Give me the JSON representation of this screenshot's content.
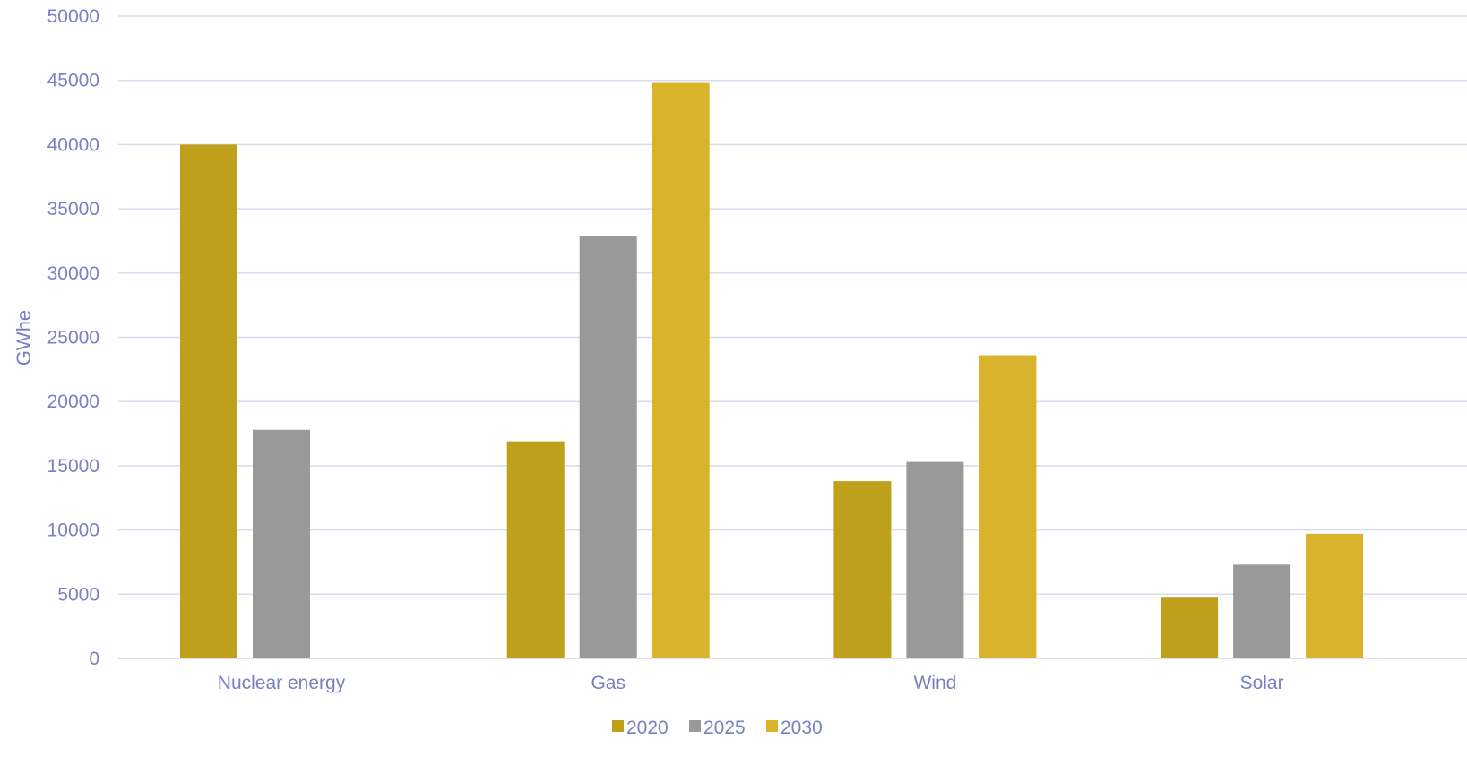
{
  "chart_data": {
    "type": "bar",
    "title": "",
    "xlabel": "",
    "ylabel": "GWhe",
    "ylim": [
      0,
      50000
    ],
    "yticks": [
      0,
      5000,
      10000,
      15000,
      20000,
      25000,
      30000,
      35000,
      40000,
      45000,
      50000
    ],
    "grid": true,
    "legend_position": "bottom",
    "categories": [
      "Nuclear energy",
      "Gas",
      "Wind",
      "Solar"
    ],
    "series": [
      {
        "name": "2020",
        "color": "#BFA01B",
        "values": [
          40000,
          16900,
          13800,
          4800
        ]
      },
      {
        "name": "2025",
        "color": "#999999",
        "values": [
          17800,
          32900,
          15300,
          7300
        ]
      },
      {
        "name": "2030",
        "color": "#D9B32B",
        "values": [
          0,
          44800,
          23600,
          9700
        ]
      }
    ],
    "colors": {
      "axis_text": "#7B7FC2",
      "gridline": "#D9DBEE",
      "baseline": "#D0D2EA"
    }
  }
}
